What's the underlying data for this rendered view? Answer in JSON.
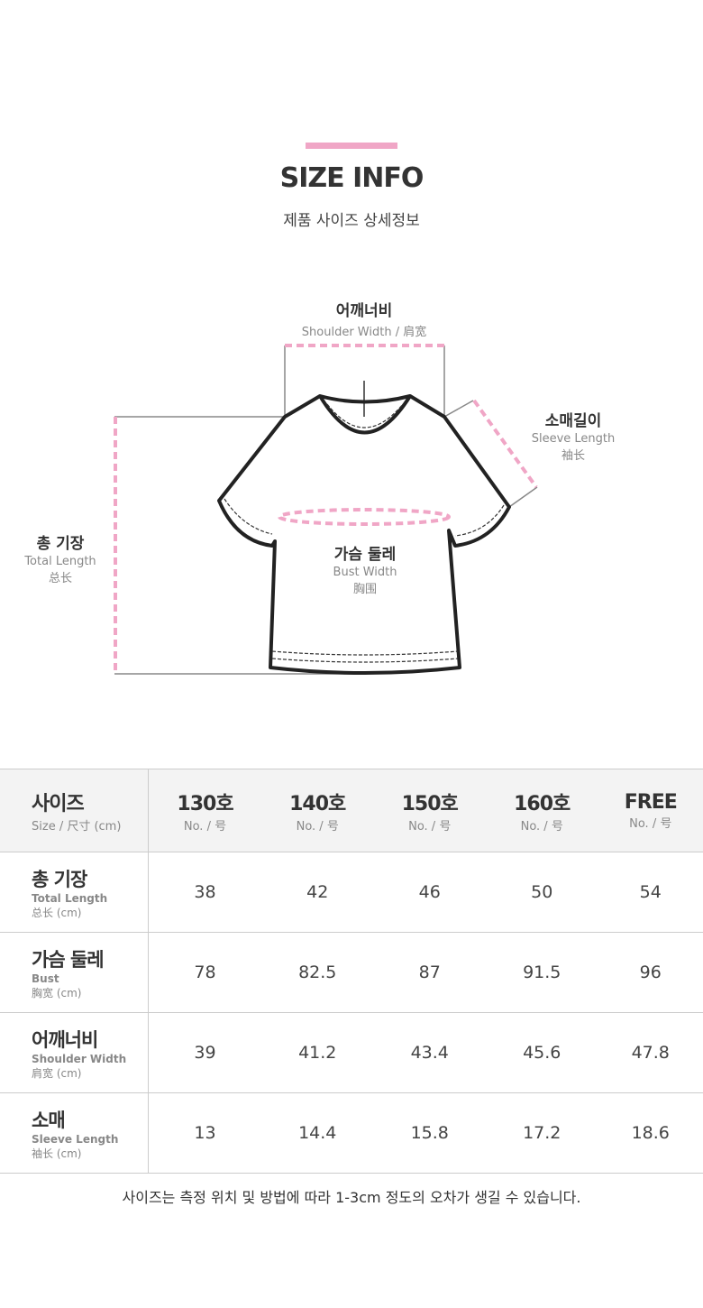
{
  "header": {
    "title": "SIZE INFO",
    "subtitle": "제품 사이즈 상세정보",
    "accent_color": "#f0a6c6"
  },
  "diagram": {
    "shoulder": {
      "ko": "어깨너비",
      "en": "Shoulder Width / 肩宽"
    },
    "sleeve": {
      "ko": "소매길이",
      "en": "Sleeve Length",
      "zh": "袖长"
    },
    "length": {
      "ko": "총 기장",
      "en": "Total Length",
      "zh": "总长"
    },
    "bust": {
      "ko": "가슴 둘레",
      "en": "Bust Width",
      "zh": "胸围"
    }
  },
  "table": {
    "header": {
      "ko": "사이즈",
      "sub": "Size / 尺寸 (cm)",
      "columns": [
        {
          "label": "130호",
          "sub": "No. / 号"
        },
        {
          "label": "140호",
          "sub": "No. / 号"
        },
        {
          "label": "150호",
          "sub": "No. / 号"
        },
        {
          "label": "160호",
          "sub": "No. / 号"
        },
        {
          "label": "FREE",
          "sub": "No. / 号"
        }
      ]
    },
    "rows": [
      {
        "ko": "총 기장",
        "en": "Total Length",
        "zh": "总长 (cm)",
        "values": [
          "38",
          "42",
          "46",
          "50",
          "54"
        ]
      },
      {
        "ko": "가슴 둘레",
        "en": "Bust",
        "zh": "胸宽 (cm)",
        "values": [
          "78",
          "82.5",
          "87",
          "91.5",
          "96"
        ]
      },
      {
        "ko": "어깨너비",
        "en": "Shoulder Width",
        "zh": "肩宽 (cm)",
        "values": [
          "39",
          "41.2",
          "43.4",
          "45.6",
          "47.8"
        ]
      },
      {
        "ko": "소매",
        "en": "Sleeve Length",
        "zh": "袖长 (cm)",
        "values": [
          "13",
          "14.4",
          "15.8",
          "17.2",
          "18.6"
        ]
      }
    ]
  },
  "note": "사이즈는 측정 위치 및 방법에 따라 1-3cm 정도의 오차가 생길 수 있습니다."
}
